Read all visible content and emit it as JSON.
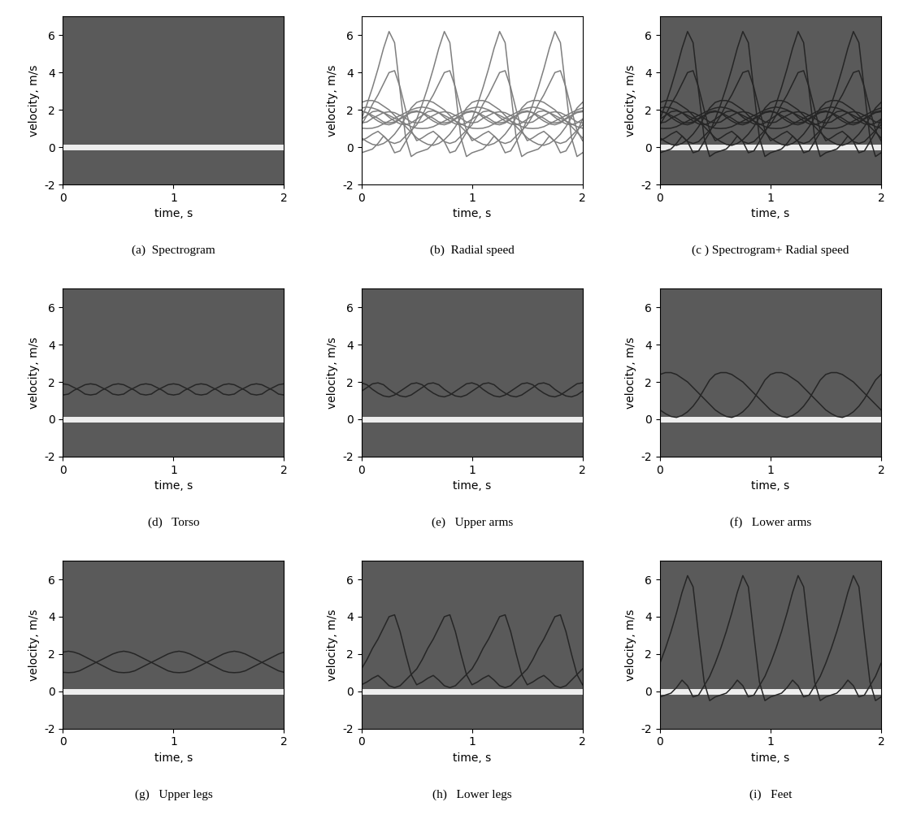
{
  "x": [
    0,
    0.05,
    0.1,
    0.15,
    0.2,
    0.25,
    0.3,
    0.35,
    0.4,
    0.45,
    0.5,
    0.55,
    0.6,
    0.65,
    0.7,
    0.75,
    0.8,
    0.85,
    0.9,
    0.95,
    1.0,
    1.05,
    1.1,
    1.15,
    1.2,
    1.25,
    1.3,
    1.35,
    1.4,
    1.45,
    1.5,
    1.55,
    1.6,
    1.65,
    1.7,
    1.75,
    1.8,
    1.85,
    1.9,
    1.95,
    2.0
  ],
  "clutter_velocity": 0,
  "curves": {
    "Torso": [
      [
        1.9,
        1.85,
        1.7,
        1.55,
        1.35,
        1.3,
        1.35,
        1.55,
        1.7,
        1.85,
        1.9,
        1.85,
        1.7,
        1.55,
        1.35,
        1.3,
        1.35,
        1.55,
        1.7,
        1.85,
        1.9,
        1.85,
        1.7,
        1.55,
        1.35,
        1.3,
        1.35,
        1.55,
        1.7,
        1.85,
        1.9,
        1.85,
        1.7,
        1.55,
        1.35,
        1.3,
        1.35,
        1.55,
        1.7,
        1.85,
        1.9
      ],
      [
        1.3,
        1.35,
        1.55,
        1.7,
        1.85,
        1.9,
        1.85,
        1.7,
        1.55,
        1.35,
        1.3,
        1.35,
        1.55,
        1.7,
        1.85,
        1.9,
        1.85,
        1.7,
        1.55,
        1.35,
        1.3,
        1.35,
        1.55,
        1.7,
        1.85,
        1.9,
        1.85,
        1.7,
        1.55,
        1.35,
        1.3,
        1.35,
        1.55,
        1.7,
        1.85,
        1.9,
        1.85,
        1.7,
        1.55,
        1.35,
        1.3
      ]
    ],
    "Upper arms": [
      [
        1.5,
        1.7,
        1.9,
        1.95,
        1.85,
        1.6,
        1.4,
        1.25,
        1.2,
        1.3,
        1.5,
        1.7,
        1.9,
        1.95,
        1.85,
        1.6,
        1.4,
        1.25,
        1.2,
        1.3,
        1.5,
        1.7,
        1.9,
        1.95,
        1.85,
        1.6,
        1.4,
        1.25,
        1.2,
        1.3,
        1.5,
        1.7,
        1.9,
        1.95,
        1.85,
        1.6,
        1.4,
        1.25,
        1.2,
        1.3,
        1.5
      ],
      [
        1.95,
        1.85,
        1.6,
        1.4,
        1.25,
        1.2,
        1.3,
        1.5,
        1.7,
        1.9,
        1.95,
        1.85,
        1.6,
        1.4,
        1.25,
        1.2,
        1.3,
        1.5,
        1.7,
        1.9,
        1.95,
        1.85,
        1.6,
        1.4,
        1.25,
        1.2,
        1.3,
        1.5,
        1.7,
        1.9,
        1.95,
        1.85,
        1.6,
        1.4,
        1.25,
        1.2,
        1.3,
        1.5,
        1.7,
        1.9,
        1.95
      ]
    ],
    "Lower arms": [
      [
        2.4,
        2.5,
        2.5,
        2.4,
        2.2,
        2.0,
        1.7,
        1.4,
        1.1,
        0.8,
        0.5,
        0.3,
        0.15,
        0.1,
        0.2,
        0.4,
        0.7,
        1.1,
        1.6,
        2.1,
        2.4,
        2.5,
        2.5,
        2.4,
        2.2,
        2.0,
        1.7,
        1.4,
        1.1,
        0.8,
        0.5,
        0.3,
        0.15,
        0.1,
        0.2,
        0.4,
        0.7,
        1.1,
        1.6,
        2.1,
        2.4
      ],
      [
        0.5,
        0.3,
        0.15,
        0.1,
        0.2,
        0.4,
        0.7,
        1.1,
        1.6,
        2.1,
        2.4,
        2.5,
        2.5,
        2.4,
        2.2,
        2.0,
        1.7,
        1.4,
        1.1,
        0.8,
        0.5,
        0.3,
        0.15,
        0.1,
        0.2,
        0.4,
        0.7,
        1.1,
        1.6,
        2.1,
        2.4,
        2.5,
        2.5,
        2.4,
        2.2,
        2.0,
        1.7,
        1.4,
        1.1,
        0.8,
        0.5
      ]
    ],
    "Upper legs": [
      [
        2.1,
        2.15,
        2.1,
        2.0,
        1.85,
        1.7,
        1.55,
        1.4,
        1.25,
        1.1,
        1.02,
        1.0,
        1.02,
        1.1,
        1.25,
        1.4,
        1.55,
        1.7,
        1.85,
        2.0,
        2.1,
        2.15,
        2.1,
        2.0,
        1.85,
        1.7,
        1.55,
        1.4,
        1.25,
        1.1,
        1.02,
        1.0,
        1.02,
        1.1,
        1.25,
        1.4,
        1.55,
        1.7,
        1.85,
        2.0,
        2.1
      ],
      [
        1.02,
        1.0,
        1.02,
        1.1,
        1.25,
        1.4,
        1.55,
        1.7,
        1.85,
        2.0,
        2.1,
        2.15,
        2.1,
        2.0,
        1.85,
        1.7,
        1.55,
        1.4,
        1.25,
        1.1,
        1.02,
        1.0,
        1.02,
        1.1,
        1.25,
        1.4,
        1.55,
        1.7,
        1.85,
        2.0,
        2.1,
        2.15,
        2.1,
        2.0,
        1.85,
        1.7,
        1.55,
        1.4,
        1.25,
        1.1,
        1.02
      ]
    ],
    "Lower legs": [
      [
        1.2,
        1.7,
        2.3,
        2.8,
        3.4,
        4.0,
        4.1,
        3.2,
        2.0,
        0.9,
        0.35,
        0.5,
        0.7,
        0.85,
        0.6,
        0.3,
        0.2,
        0.3,
        0.6,
        0.9,
        1.2,
        1.7,
        2.3,
        2.8,
        3.4,
        4.0,
        4.1,
        3.2,
        2.0,
        0.9,
        0.35,
        0.5,
        0.7,
        0.85,
        0.6,
        0.3,
        0.2,
        0.3,
        0.6,
        0.9,
        1.2
      ],
      [
        0.35,
        0.5,
        0.7,
        0.85,
        0.6,
        0.3,
        0.2,
        0.3,
        0.6,
        0.9,
        1.2,
        1.7,
        2.3,
        2.8,
        3.4,
        4.0,
        4.1,
        3.2,
        2.0,
        0.9,
        0.35,
        0.5,
        0.7,
        0.85,
        0.6,
        0.3,
        0.2,
        0.3,
        0.6,
        0.9,
        1.2,
        1.7,
        2.3,
        2.8,
        3.4,
        4.0,
        4.1,
        3.2,
        2.0,
        0.9,
        0.35
      ]
    ],
    "Feet": [
      [
        1.5,
        2.3,
        3.2,
        4.2,
        5.3,
        6.2,
        5.6,
        3.0,
        0.5,
        -0.5,
        -0.3,
        -0.2,
        -0.1,
        0.2,
        0.6,
        0.3,
        -0.3,
        -0.2,
        0.3,
        0.8,
        1.5,
        2.3,
        3.2,
        4.2,
        5.3,
        6.2,
        5.6,
        3.0,
        0.5,
        -0.5,
        -0.3,
        -0.2,
        -0.1,
        0.2,
        0.6,
        0.3,
        -0.3,
        -0.2,
        0.3,
        0.8,
        1.5
      ],
      [
        -0.3,
        -0.2,
        -0.1,
        0.2,
        0.6,
        0.3,
        -0.3,
        -0.2,
        0.3,
        0.8,
        1.5,
        2.3,
        3.2,
        4.2,
        5.3,
        6.2,
        5.6,
        3.0,
        0.5,
        -0.5,
        -0.3,
        -0.2,
        -0.1,
        0.2,
        0.6,
        0.3,
        -0.3,
        -0.2,
        0.3,
        0.8,
        1.5,
        2.3,
        3.2,
        4.2,
        5.3,
        6.2,
        5.6,
        3.0,
        0.5,
        -0.5,
        -0.3
      ]
    ]
  },
  "chart_data": [
    {
      "type": "spectrogram",
      "caption": "(a)  Spectrogram",
      "x_label": "time, s",
      "y_label": "velocity, m/s",
      "xlim": [
        0,
        2
      ],
      "ylim": [
        -2,
        7
      ],
      "xticks": [
        0,
        1,
        2
      ],
      "yticks": [
        -2,
        0,
        2,
        4,
        6
      ],
      "parts": []
    },
    {
      "type": "line",
      "caption": "(b)  Radial speed",
      "x_label": "time, s",
      "y_label": "velocity, m/s",
      "color": "#7f7f7f",
      "xlim": [
        0,
        2
      ],
      "ylim": [
        -2,
        7
      ],
      "xticks": [
        0,
        1,
        2
      ],
      "yticks": [
        -2,
        0,
        2,
        4,
        6
      ],
      "parts": [
        "Torso",
        "Upper arms",
        "Lower arms",
        "Upper legs",
        "Lower legs",
        "Feet"
      ]
    },
    {
      "type": "overlay",
      "caption": "(c ) Spectrogram+ Radial speed",
      "x_label": "time, s",
      "y_label": "velocity, m/s",
      "color": "#262626",
      "xlim": [
        0,
        2
      ],
      "ylim": [
        -2,
        7
      ],
      "xticks": [
        0,
        1,
        2
      ],
      "yticks": [
        -2,
        0,
        2,
        4,
        6
      ],
      "parts": [
        "Torso",
        "Upper arms",
        "Lower arms",
        "Upper legs",
        "Lower legs",
        "Feet"
      ]
    },
    {
      "type": "overlay",
      "caption": "(d)   Torso",
      "x_label": "time, s",
      "y_label": "velocity, m/s",
      "color": "#262626",
      "xlim": [
        0,
        2
      ],
      "ylim": [
        -2,
        7
      ],
      "xticks": [
        0,
        1,
        2
      ],
      "yticks": [
        -2,
        0,
        2,
        4,
        6
      ],
      "parts": [
        "Torso"
      ]
    },
    {
      "type": "overlay",
      "caption": "(e)   Upper arms",
      "x_label": "time, s",
      "y_label": "velocity, m/s",
      "color": "#262626",
      "xlim": [
        0,
        2
      ],
      "ylim": [
        -2,
        7
      ],
      "xticks": [
        0,
        1,
        2
      ],
      "yticks": [
        -2,
        0,
        2,
        4,
        6
      ],
      "parts": [
        "Upper arms"
      ]
    },
    {
      "type": "overlay",
      "caption": "(f)   Lower arms",
      "x_label": "time, s",
      "y_label": "velocity, m/s",
      "color": "#262626",
      "xlim": [
        0,
        2
      ],
      "ylim": [
        -2,
        7
      ],
      "xticks": [
        0,
        1,
        2
      ],
      "yticks": [
        -2,
        0,
        2,
        4,
        6
      ],
      "parts": [
        "Lower arms"
      ]
    },
    {
      "type": "overlay",
      "caption": "(g)   Upper legs",
      "x_label": "time, s",
      "y_label": "velocity, m/s",
      "color": "#262626",
      "xlim": [
        0,
        2
      ],
      "ylim": [
        -2,
        7
      ],
      "xticks": [
        0,
        1,
        2
      ],
      "yticks": [
        -2,
        0,
        2,
        4,
        6
      ],
      "parts": [
        "Upper legs"
      ]
    },
    {
      "type": "overlay",
      "caption": "(h)   Lower legs",
      "x_label": "time, s",
      "y_label": "velocity, m/s",
      "color": "#262626",
      "xlim": [
        0,
        2
      ],
      "ylim": [
        -2,
        7
      ],
      "xticks": [
        0,
        1,
        2
      ],
      "yticks": [
        -2,
        0,
        2,
        4,
        6
      ],
      "parts": [
        "Lower legs"
      ]
    },
    {
      "type": "overlay",
      "caption": "(i)   Feet",
      "x_label": "time, s",
      "y_label": "velocity, m/s",
      "color": "#262626",
      "xlim": [
        0,
        2
      ],
      "ylim": [
        -2,
        7
      ],
      "xticks": [
        0,
        1,
        2
      ],
      "yticks": [
        -2,
        0,
        2,
        4,
        6
      ],
      "parts": [
        "Feet"
      ]
    }
  ]
}
